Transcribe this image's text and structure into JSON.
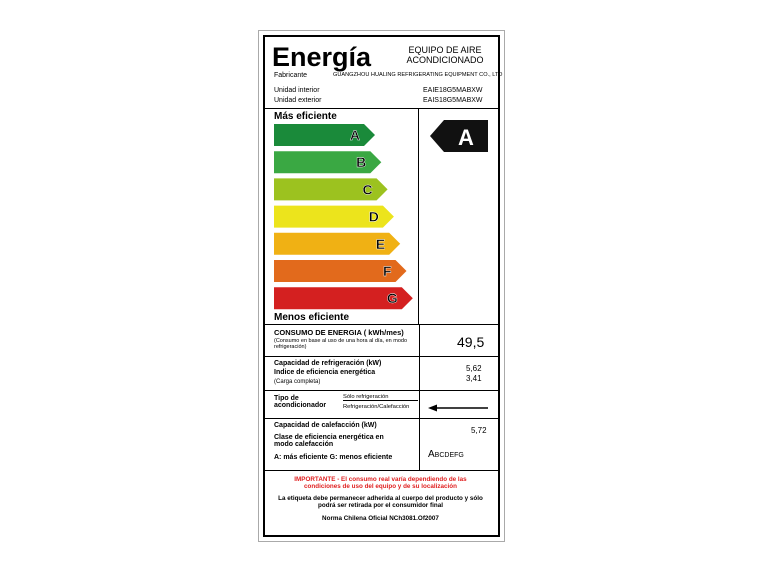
{
  "header": {
    "title": "Energía",
    "product": [
      "EQUIPO DE AIRE",
      "ACONDICIONADO"
    ],
    "manufacturer_label": "Fabricante",
    "manufacturer": "GUANGZHOU HUALING REFRIGERATING EQUIPMENT CO., LTD",
    "indoor_label": "Unidad interior",
    "indoor_model": "EAIE18G5MABXW",
    "outdoor_label": "Unidad exterior",
    "outdoor_model": "EAIS18G5MABXW"
  },
  "scale": {
    "top_label": "Más eficiente",
    "bottom_label": "Menos eficiente",
    "classes": [
      "A",
      "B",
      "C",
      "D",
      "E",
      "F",
      "G"
    ],
    "rating": "A"
  },
  "consumption": {
    "label": "CONSUMO DE ENERGIA ( kWh/mes)",
    "note": "(Consumo en base al uso de una hora al día, en modo refrigeración)",
    "value": "49,5"
  },
  "cooling": {
    "capacity_label": "Capacidad de refrigeración (kW)",
    "index_label": "Indice de eficiencia energética",
    "note": "(Carga completa)",
    "capacity": "5,62",
    "index": "3,41"
  },
  "type": {
    "label": "Tipo de acondicionador",
    "options": [
      "Sólo refrigeración",
      "Refrigeración/Calefacción"
    ]
  },
  "heating": {
    "capacity_label": "Capacidad de calefacción (kW)",
    "class_label": "Clase de eficiencia energética en modo calefacción",
    "legend": "A: más eficiente G: menos eficiente",
    "capacity": "5,72",
    "class_first": "A",
    "class_rest": "BCDEFG"
  },
  "footer": {
    "important": "IMPORTANTE - El consumo real varía dependiendo de las condiciones de uso del equipo y de su localización",
    "notice": "La etiqueta debe permanecer adherida al cuerpo del producto y sólo podrá ser retirada por el consumidor final",
    "norm": "Norma Chilena Oficial NCh3081.Of2007"
  }
}
